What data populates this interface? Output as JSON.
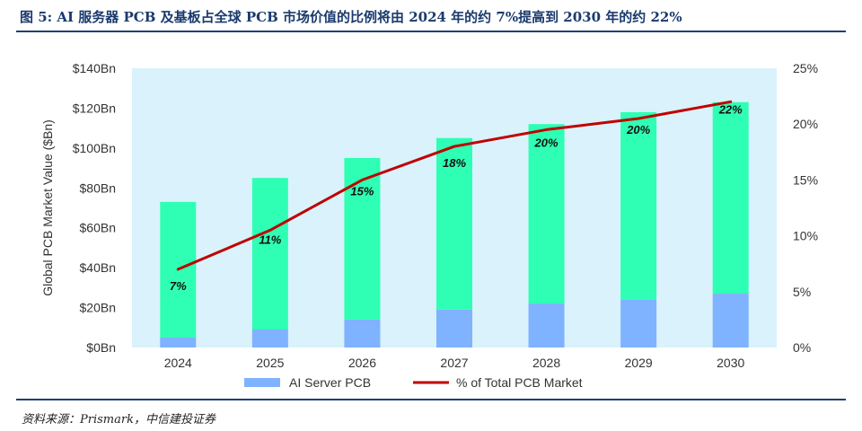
{
  "header": {
    "title": "图 5: AI 服务器 PCB 及基板占全球 PCB 市场价值的比例将由 2024 年的约 7%提高到 2030 年的约 22%"
  },
  "footer": {
    "source": "资料来源：Prismark，中信建投证券"
  },
  "chart_data": {
    "type": "bar",
    "categories": [
      "2024",
      "2025",
      "2026",
      "2027",
      "2028",
      "2029",
      "2030"
    ],
    "series": [
      {
        "name": "AI Server PCB",
        "kind": "bar",
        "axis": "left",
        "color": "#7fb2ff",
        "values": [
          5,
          9,
          14,
          19,
          22,
          24,
          27
        ]
      },
      {
        "name": "",
        "kind": "bar-stack",
        "axis": "left",
        "color": "#2effb4",
        "values": [
          68,
          76,
          81,
          86,
          90,
          94,
          96
        ]
      },
      {
        "name": "% of Total PCB Market",
        "kind": "line",
        "axis": "right",
        "color": "#c00000",
        "values": [
          7,
          10.5,
          15,
          18,
          19.5,
          20.5,
          22
        ],
        "labels": [
          "7%",
          "11%",
          "15%",
          "18%",
          "20%",
          "20%",
          "22%"
        ]
      }
    ],
    "ylabel": "Global PCB Market Value ($Bn)",
    "ylim": [
      0,
      140
    ],
    "y_ticks": [
      "$0Bn",
      "$20Bn",
      "$40Bn",
      "$60Bn",
      "$80Bn",
      "$100Bn",
      "$120Bn",
      "$140Bn"
    ],
    "y2lim": [
      0,
      25
    ],
    "y2_ticks": [
      "0%",
      "5%",
      "10%",
      "15%",
      "20%",
      "25%"
    ],
    "plot_background": "#d9f2fb",
    "grid": false,
    "legend_position": "bottom"
  }
}
